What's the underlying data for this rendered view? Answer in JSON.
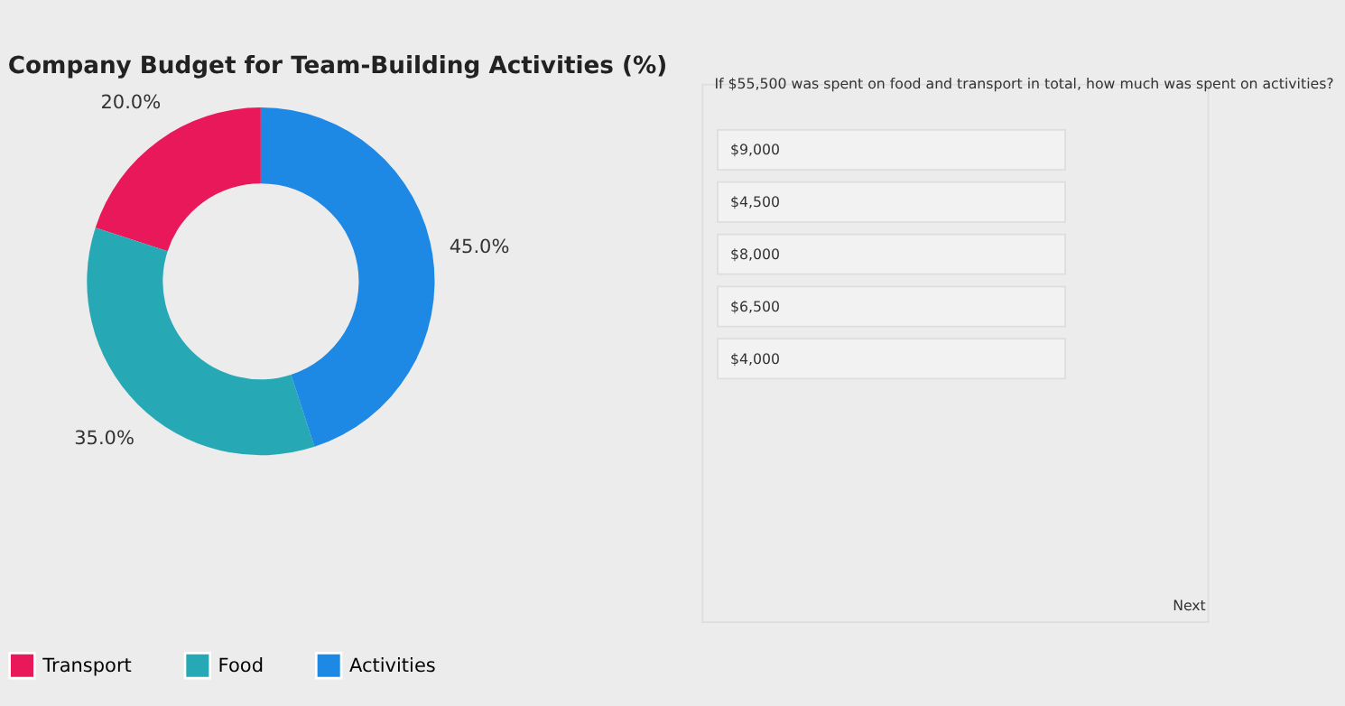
{
  "chart_data": {
    "type": "donut",
    "title": "Company Budget for Team-Building Activities (%)",
    "categories": [
      "Transport",
      "Food",
      "Activities"
    ],
    "values": [
      20,
      35,
      45
    ],
    "colors": [
      "#e8185a",
      "#26a9b5",
      "#1e88e5"
    ],
    "value_labels": [
      "20.0%",
      "35.0%",
      "45.0%"
    ],
    "legend": "bottom",
    "annotations": [
      "If $55,500 was spent on food and transport in total, how much was spent on activities?",
      "$9,000",
      "$4,500",
      "$8,000",
      "$6,500",
      "$4,000",
      "Next"
    ]
  }
}
